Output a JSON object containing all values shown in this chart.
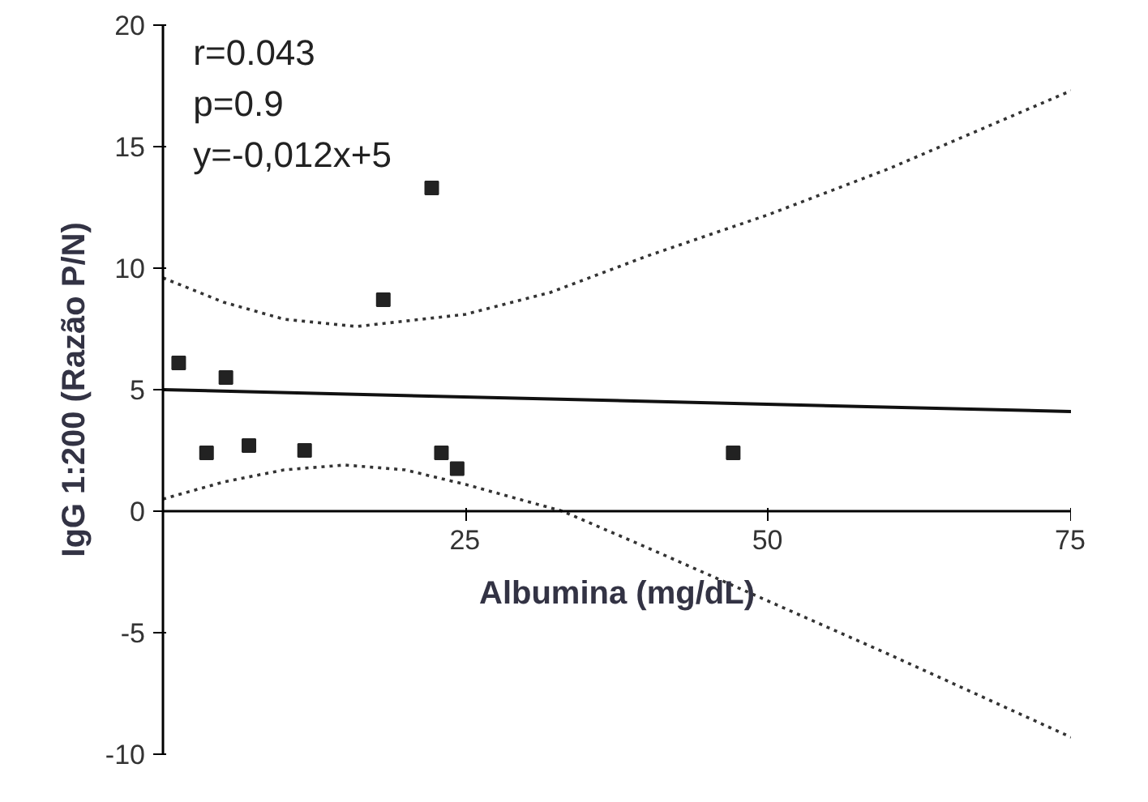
{
  "chart_data": {
    "type": "scatter",
    "xlabel": "Albumina (mg/dL)",
    "ylabel": "IgG 1:200 (Razão P/N)",
    "annotations": [
      "r=0.043",
      "p=0.9",
      "y=-0,012x+5"
    ],
    "xlim": [
      0,
      75
    ],
    "ylim": [
      -10,
      20
    ],
    "xticks": [
      25,
      50,
      75
    ],
    "yticks": [
      -10,
      -5,
      0,
      5,
      10,
      15,
      20
    ],
    "grid": false,
    "series": [
      {
        "marker": "square",
        "color": "#222222",
        "x": [
          1.3,
          5.2,
          3.6,
          7.1,
          11.7,
          18.2,
          22.2,
          23.0,
          24.3,
          47.1
        ],
        "values": [
          6.1,
          5.5,
          2.4,
          2.7,
          2.5,
          8.7,
          13.3,
          2.4,
          1.75,
          2.4
        ]
      },
      {
        "type": "line",
        "line_style": "solid",
        "color": "#111111",
        "x": [
          0,
          75
        ],
        "values": [
          5,
          4.1
        ]
      },
      {
        "type": "line",
        "line_style": "dotted",
        "color": "#333333",
        "x": [
          0,
          5,
          10,
          16,
          25,
          32,
          40,
          50,
          60,
          75
        ],
        "values": [
          9.6,
          8.6,
          7.9,
          7.6,
          8.1,
          9.0,
          10.5,
          12.2,
          14.1,
          17.3
        ]
      },
      {
        "type": "line",
        "line_style": "dotted",
        "color": "#333333",
        "x": [
          0,
          5,
          10,
          15,
          20,
          25,
          33,
          40,
          50,
          60,
          75
        ],
        "values": [
          0.5,
          1.2,
          1.7,
          1.9,
          1.7,
          1.1,
          0,
          -1.5,
          -3.7,
          -5.9,
          -9.3
        ]
      }
    ]
  }
}
